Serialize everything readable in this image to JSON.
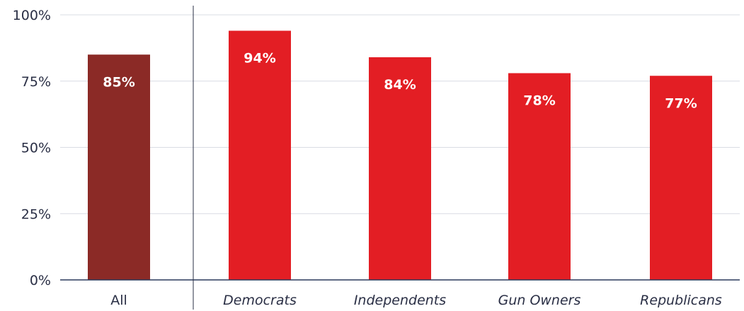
{
  "chart_data": {
    "type": "bar",
    "categories": [
      "All",
      "Democrats",
      "Independents",
      "Gun Owners",
      "Republicans"
    ],
    "values": [
      85,
      94,
      84,
      78,
      77
    ],
    "value_labels": [
      "85%",
      "94%",
      "84%",
      "78%",
      "77%"
    ],
    "italic_categories": [
      false,
      true,
      true,
      true,
      true
    ],
    "bar_colors": [
      "#8b2a26",
      "#e31e24",
      "#e31e24",
      "#e31e24",
      "#e31e24"
    ],
    "ylim": [
      0,
      100
    ],
    "yticks": [
      0,
      25,
      50,
      75,
      100
    ],
    "ytick_labels": [
      "0%",
      "25%",
      "50%",
      "75%",
      "100%"
    ],
    "grid": true,
    "separator_after_first": true,
    "title": "",
    "xlabel": "",
    "ylabel": ""
  },
  "colors": {
    "grid": "#d9dce3",
    "axis": "#2a3a5c",
    "separator": "#2a2f45",
    "value_text": "#ffffff"
  }
}
